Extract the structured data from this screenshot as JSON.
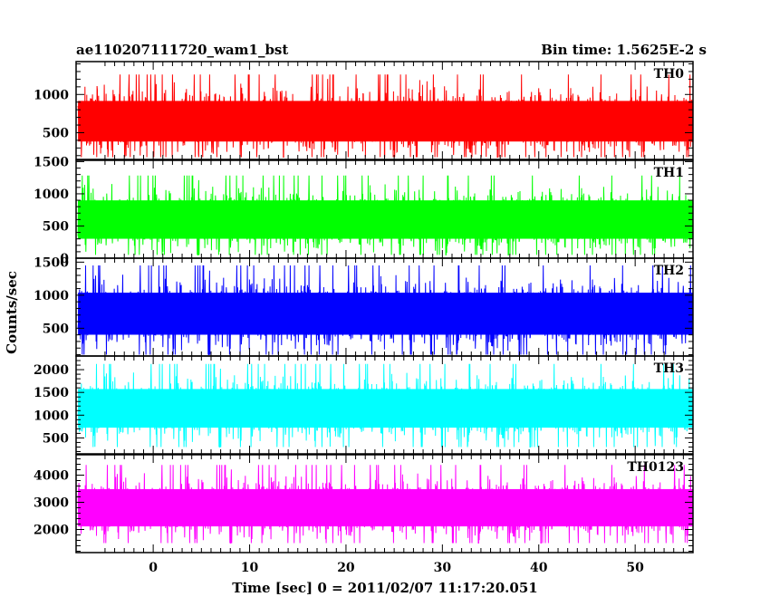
{
  "chart_data": {
    "type": "line",
    "title": "ae110207111720_wam1_bst",
    "subtitle": "Bin time: 1.5625E-2 s",
    "xlabel": "Time [sec] 0 = 2011/02/07 11:17:20.051",
    "ylabel": "Counts/sec",
    "xlim": [
      -8,
      56
    ],
    "x_ticks": [
      0,
      10,
      20,
      30,
      40,
      50
    ],
    "x_bin": 0.015625,
    "x_start": -7.8,
    "x_end": 56.0,
    "grid": false,
    "panels": [
      {
        "name": "TH0",
        "color": "#ff0000",
        "ylim": [
          150,
          1430
        ],
        "ticks": [
          500,
          1000
        ],
        "mean": 650,
        "low": 180,
        "high": 1400
      },
      {
        "name": "TH1",
        "color": "#00ff00",
        "ylim": [
          0,
          1520
        ],
        "ticks": [
          0,
          500,
          1000,
          1500
        ],
        "mean": 600,
        "low": 50,
        "high": 1420
      },
      {
        "name": "TH2",
        "color": "#0000ff",
        "ylim": [
          80,
          1560
        ],
        "ticks": [
          500,
          1000,
          1500
        ],
        "mean": 720,
        "low": 100,
        "high": 1560
      },
      {
        "name": "TH3",
        "color": "#00ffff",
        "ylim": [
          150,
          2300
        ],
        "ticks": [
          500,
          1000,
          1500,
          2000
        ],
        "mean": 1150,
        "low": 300,
        "high": 2250
      },
      {
        "name": "TH0123",
        "color": "#ff00ff",
        "ylim": [
          1150,
          4750
        ],
        "ticks": [
          2000,
          3000,
          4000
        ],
        "mean": 2800,
        "low": 1500,
        "high": 4650
      }
    ]
  }
}
